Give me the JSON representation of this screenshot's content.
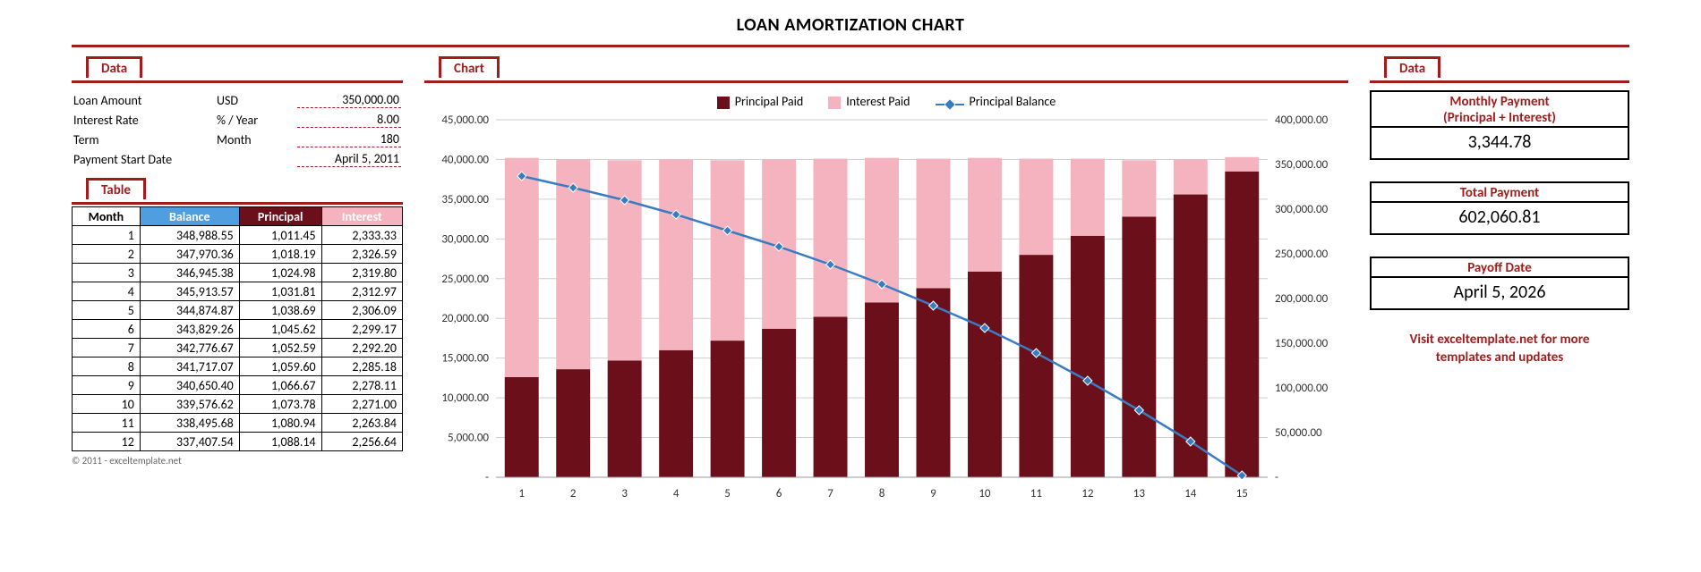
{
  "title": "LOAN AMORTIZATION CHART",
  "accent_color": "#a11c1c",
  "section_labels": {
    "data": "Data",
    "chart": "Chart",
    "table": "Table"
  },
  "inputs": {
    "rows": [
      {
        "label": "Loan Amount",
        "unit": "USD",
        "value": "350,000.00"
      },
      {
        "label": "Interest Rate",
        "unit": "% / Year",
        "value": "8.00"
      },
      {
        "label": "Term",
        "unit": "Month",
        "value": "180"
      },
      {
        "label": "Payment Start Date",
        "unit": "",
        "value": "April 5, 2011"
      }
    ]
  },
  "table": {
    "headers": {
      "month": "Month",
      "balance": "Balance",
      "principal": "Principal",
      "interest": "Interest"
    },
    "header_colors": {
      "month": "#ffffff",
      "balance": "#4f9fe0",
      "principal": "#6b0f1a",
      "interest": "#f4b3be"
    },
    "rows": [
      {
        "month": "1",
        "balance": "348,988.55",
        "principal": "1,011.45",
        "interest": "2,333.33"
      },
      {
        "month": "2",
        "balance": "347,970.36",
        "principal": "1,018.19",
        "interest": "2,326.59"
      },
      {
        "month": "3",
        "balance": "346,945.38",
        "principal": "1,024.98",
        "interest": "2,319.80"
      },
      {
        "month": "4",
        "balance": "345,913.57",
        "principal": "1,031.81",
        "interest": "2,312.97"
      },
      {
        "month": "5",
        "balance": "344,874.87",
        "principal": "1,038.69",
        "interest": "2,306.09"
      },
      {
        "month": "6",
        "balance": "343,829.26",
        "principal": "1,045.62",
        "interest": "2,299.17"
      },
      {
        "month": "7",
        "balance": "342,776.67",
        "principal": "1,052.59",
        "interest": "2,292.20"
      },
      {
        "month": "8",
        "balance": "341,717.07",
        "principal": "1,059.60",
        "interest": "2,285.18"
      },
      {
        "month": "9",
        "balance": "340,650.40",
        "principal": "1,066.67",
        "interest": "2,278.11"
      },
      {
        "month": "10",
        "balance": "339,576.62",
        "principal": "1,073.78",
        "interest": "2,271.00"
      },
      {
        "month": "11",
        "balance": "338,495.68",
        "principal": "1,080.94",
        "interest": "2,263.84"
      },
      {
        "month": "12",
        "balance": "337,407.54",
        "principal": "1,088.14",
        "interest": "2,256.64"
      }
    ]
  },
  "summary": {
    "monthly_payment": {
      "head1": "Monthly Payment",
      "head2": "(Principal + Interest)",
      "value": "3,344.78"
    },
    "total_payment": {
      "head": "Total Payment",
      "value": "602,060.81"
    },
    "payoff_date": {
      "head": "Payoff Date",
      "value": "April 5, 2026"
    },
    "visit_text1": "Visit exceltemplate.net for more",
    "visit_text2": "templates and updates"
  },
  "copyright": "© 2011 - exceltemplate.net",
  "chart": {
    "legend": {
      "principal": "Principal Paid",
      "interest": "Interest Paid",
      "balance": "Principal Balance"
    },
    "colors": {
      "principal_bar": "#6b0f1a",
      "interest_bar": "#f4b3be",
      "balance_line": "#3a7cc4",
      "grid": "#cfcfcf",
      "background": "#ffffff",
      "text": "#333333"
    },
    "left_axis": {
      "min": 0,
      "max": 45000,
      "step": 5000,
      "labels": [
        "-",
        "5,000.00",
        "10,000.00",
        "15,000.00",
        "20,000.00",
        "25,000.00",
        "30,000.00",
        "35,000.00",
        "40,000.00",
        "45,000.00"
      ]
    },
    "right_axis": {
      "min": 0,
      "max": 400000,
      "step": 50000,
      "labels": [
        "-",
        "50,000.00",
        "100,000.00",
        "150,000.00",
        "200,000.00",
        "250,000.00",
        "300,000.00",
        "350,000.00",
        "400,000.00"
      ]
    },
    "categories": [
      "1",
      "2",
      "3",
      "4",
      "5",
      "6",
      "7",
      "8",
      "9",
      "10",
      "11",
      "12",
      "13",
      "14",
      "15"
    ],
    "principal_paid": [
      12600,
      13600,
      14700,
      16000,
      17200,
      18700,
      20200,
      22000,
      23800,
      25900,
      28000,
      30400,
      32800,
      35600,
      38500
    ],
    "interest_paid": [
      27600,
      26400,
      25200,
      24000,
      22700,
      21300,
      19900,
      18200,
      16300,
      14300,
      12100,
      9700,
      7100,
      4400,
      1800
    ],
    "principal_balance": [
      337000,
      324000,
      310000,
      294000,
      276000,
      258000,
      238000,
      216000,
      192000,
      167000,
      139000,
      108000,
      75000,
      40000,
      2000
    ],
    "bar_width_ratio": 0.66,
    "font_size": 13
  }
}
